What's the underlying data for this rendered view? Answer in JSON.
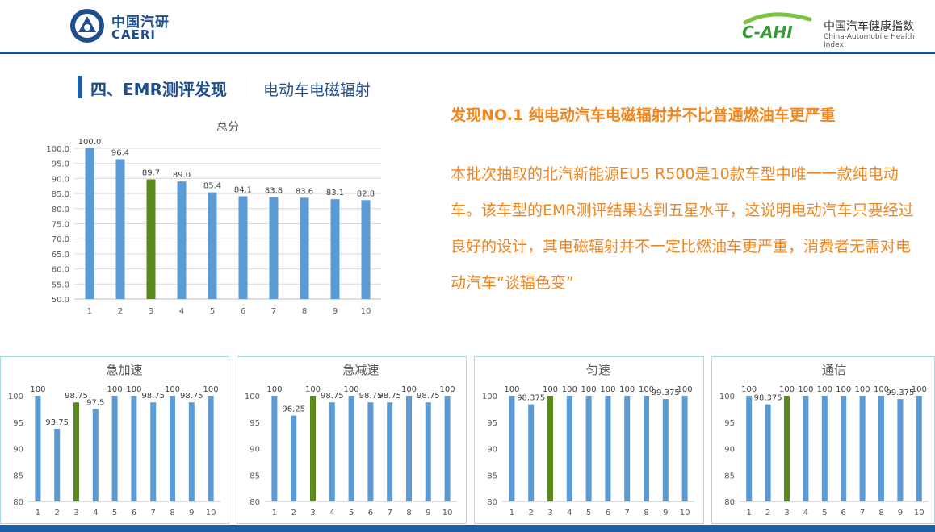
{
  "header": {
    "caeri_cn": "中国汽研",
    "caeri_en": "CAERI",
    "cahi_logo_text": "C-AHI",
    "cahi_cn": "中国汽车健康指数",
    "cahi_en": "China-Automobile Health Index"
  },
  "section": {
    "title": "四、EMR测评发现",
    "subtitle": "电动车电磁辐射"
  },
  "finding": {
    "title": "发现NO.1   纯电动汽车电磁辐射并不比普通燃油车更严重",
    "body": "本批次抽取的北汽新能源EU5 R500是10款车型中唯一一款纯电动车。该车型的EMR测评结果达到五星水平，这说明电动汽车只要经过良好的设计，其电磁辐射并不一定比燃油车更严重，消费者无需对电动汽车“谈辐色变”"
  },
  "colors": {
    "bar": "#5b9bd5",
    "highlight": "#5a8a1a",
    "accent": "#f0861e",
    "navy": "#1f4e8c"
  },
  "chart_data": [
    {
      "type": "bar",
      "title": "总分",
      "categories": [
        "1",
        "2",
        "3",
        "4",
        "5",
        "6",
        "7",
        "8",
        "9",
        "10"
      ],
      "values": [
        100.0,
        96.4,
        89.7,
        89.0,
        85.4,
        84.1,
        83.8,
        83.6,
        83.1,
        82.8
      ],
      "labels": [
        "100.0",
        "96.4",
        "89.7",
        "89.0",
        "85.4",
        "84.1",
        "83.8",
        "83.6",
        "83.1",
        "82.8"
      ],
      "highlight_index": 2,
      "ylim": [
        50,
        100
      ],
      "yticks": [
        "50.0",
        "55.0",
        "60.0",
        "65.0",
        "70.0",
        "75.0",
        "80.0",
        "85.0",
        "90.0",
        "95.0",
        "100.0"
      ],
      "grid": true
    },
    {
      "type": "bar",
      "title": "急加速",
      "categories": [
        "1",
        "2",
        "3",
        "4",
        "5",
        "6",
        "7",
        "8",
        "9",
        "10"
      ],
      "values": [
        100,
        93.75,
        98.75,
        97.5,
        100,
        100,
        98.75,
        100,
        98.75,
        100
      ],
      "labels": [
        "100",
        "93.75",
        "98.75",
        "97.5",
        "100",
        "100",
        "98.75",
        "100",
        "98.75",
        "100"
      ],
      "highlight_index": 2,
      "ylim": [
        80,
        100
      ],
      "yticks": [
        "80",
        "85",
        "90",
        "95",
        "100"
      ],
      "grid": false
    },
    {
      "type": "bar",
      "title": "急减速",
      "categories": [
        "1",
        "2",
        "3",
        "4",
        "5",
        "6",
        "7",
        "8",
        "9",
        "10"
      ],
      "values": [
        100,
        96.25,
        100,
        98.75,
        100,
        98.75,
        98.75,
        100,
        98.75,
        100
      ],
      "labels": [
        "100",
        "96.25",
        "100",
        "98.75",
        "100",
        "98.75",
        "98.75",
        "100",
        "98.75",
        "100"
      ],
      "highlight_index": 2,
      "ylim": [
        80,
        100
      ],
      "yticks": [
        "80",
        "85",
        "90",
        "95",
        "100"
      ],
      "grid": false
    },
    {
      "type": "bar",
      "title": "匀速",
      "categories": [
        "1",
        "2",
        "3",
        "4",
        "5",
        "6",
        "7",
        "8",
        "9",
        "10"
      ],
      "values": [
        100,
        98.375,
        100,
        100,
        100,
        100,
        100,
        100,
        99.375,
        100
      ],
      "labels": [
        "100",
        "98.375",
        "100",
        "100",
        "100",
        "100",
        "100",
        "100",
        "99.375",
        "100"
      ],
      "highlight_index": 2,
      "ylim": [
        80,
        100
      ],
      "yticks": [
        "80",
        "85",
        "90",
        "95",
        "100"
      ],
      "grid": false
    },
    {
      "type": "bar",
      "title": "通信",
      "categories": [
        "1",
        "2",
        "3",
        "4",
        "5",
        "6",
        "7",
        "8",
        "9",
        "10"
      ],
      "values": [
        100,
        98.375,
        100,
        100,
        100,
        100,
        100,
        100,
        99.375,
        100
      ],
      "labels": [
        "100",
        "98.375",
        "100",
        "100",
        "100",
        "100",
        "100",
        "100",
        "99.375",
        "100"
      ],
      "highlight_index": 2,
      "ylim": [
        80,
        100
      ],
      "yticks": [
        "80",
        "85",
        "90",
        "95",
        "100"
      ],
      "grid": false
    }
  ]
}
